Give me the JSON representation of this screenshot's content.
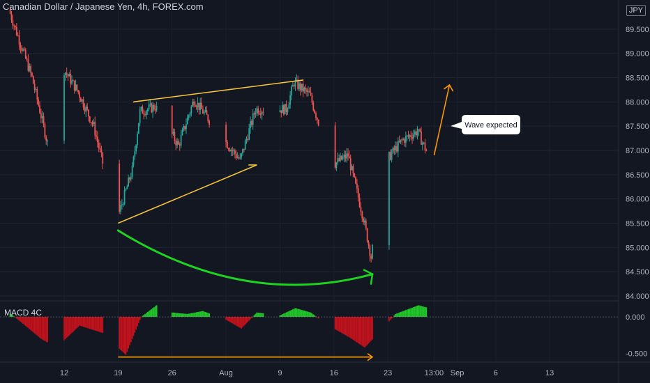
{
  "header": {
    "title": "Canadian Dollar / Japanese Yen, 4h, FOREX.com",
    "currency_badge": "JPY"
  },
  "colors": {
    "background": "#131722",
    "up_candle": "#26a69a",
    "down_candle": "#ef5350",
    "macd_up": "#23d82a",
    "macd_down": "#d3121c",
    "channel_line": "#f5c23d",
    "wave_arrow": "#ff9800",
    "curve_arrow": "#1fd322"
  },
  "chart_data": {
    "type": "candlestick",
    "title": "Canadian Dollar / Japanese Yen, 4h, FOREX.com",
    "price_axis": {
      "ticks": [
        "89.500",
        "89.000",
        "88.500",
        "88.000",
        "87.500",
        "87.000",
        "86.500",
        "86.000",
        "85.500",
        "85.000",
        "84.500",
        "84.000"
      ],
      "range": [
        83.9,
        90.1
      ]
    },
    "time_axis": {
      "ticks": [
        "12",
        "19",
        "26",
        "Aug",
        "9",
        "16",
        "23",
        "13:00",
        "Sep",
        "6",
        "13"
      ]
    },
    "key_points": [
      {
        "time": "Jul 05",
        "price": 89.9
      },
      {
        "time": "Jul 08",
        "price": 88.5
      },
      {
        "time": "Jul 10",
        "price": 87.15
      },
      {
        "time": "Jul 12",
        "price": 88.7
      },
      {
        "time": "Jul 14",
        "price": 88.2
      },
      {
        "time": "Jul 16",
        "price": 87.5
      },
      {
        "time": "Jul 19",
        "price": 85.55
      },
      {
        "time": "Jul 21",
        "price": 86.6
      },
      {
        "time": "Jul 22",
        "price": 87.8
      },
      {
        "time": "Jul 24",
        "price": 87.9
      },
      {
        "time": "Jul 27",
        "price": 87.1
      },
      {
        "time": "Jul 29",
        "price": 88.05
      },
      {
        "time": "Aug 02",
        "price": 87.2
      },
      {
        "time": "Aug 04",
        "price": 86.8
      },
      {
        "time": "Aug 06",
        "price": 87.85
      },
      {
        "time": "Aug 10",
        "price": 87.85
      },
      {
        "time": "Aug 11",
        "price": 88.4
      },
      {
        "time": "Aug 13",
        "price": 88.15
      },
      {
        "time": "Aug 16",
        "price": 86.7
      },
      {
        "time": "Aug 18",
        "price": 86.9
      },
      {
        "time": "Aug 20",
        "price": 85.6
      },
      {
        "time": "Aug 21",
        "price": 84.8
      },
      {
        "time": "Aug 23",
        "price": 86.8
      },
      {
        "time": "Aug 25",
        "price": 87.2
      },
      {
        "time": "Aug 27",
        "price": 87.4
      },
      {
        "time": "Aug 29",
        "price": 86.7
      }
    ],
    "macd": {
      "title": "MACD 4C",
      "ticks": [
        "0.000",
        "-0.500"
      ],
      "range": [
        -0.62,
        0.22
      ],
      "key_points": [
        {
          "time": "Jul 05",
          "value": 0.05
        },
        {
          "time": "Jul 09",
          "value": -0.3
        },
        {
          "time": "Jul 11",
          "value": -0.42
        },
        {
          "time": "Jul 14",
          "value": -0.12
        },
        {
          "time": "Jul 17",
          "value": -0.22
        },
        {
          "time": "Jul 20",
          "value": -0.52
        },
        {
          "time": "Jul 22",
          "value": 0.0
        },
        {
          "time": "Jul 24",
          "value": 0.16
        },
        {
          "time": "Jul 26",
          "value": 0.06
        },
        {
          "time": "Jul 28",
          "value": 0.04
        },
        {
          "time": "Jul 30",
          "value": 0.08
        },
        {
          "time": "Aug 02",
          "value": -0.04
        },
        {
          "time": "Aug 04",
          "value": -0.16
        },
        {
          "time": "Aug 06",
          "value": 0.06
        },
        {
          "time": "Aug 09",
          "value": 0.02
        },
        {
          "time": "Aug 11",
          "value": 0.12
        },
        {
          "time": "Aug 13",
          "value": 0.06
        },
        {
          "time": "Aug 15",
          "value": -0.1
        },
        {
          "time": "Aug 18",
          "value": -0.28
        },
        {
          "time": "Aug 20",
          "value": -0.42
        },
        {
          "time": "Aug 22",
          "value": -0.2
        },
        {
          "time": "Aug 24",
          "value": 0.04
        },
        {
          "time": "Aug 27",
          "value": 0.16
        },
        {
          "time": "Aug 29",
          "value": 0.1
        }
      ]
    },
    "annotations": [
      {
        "type": "callout",
        "text": "Wave expected"
      },
      {
        "type": "channel",
        "upper": [
          {
            "time": "Jul 21",
            "price": 88.0
          },
          {
            "time": "Aug 12",
            "price": 88.45
          }
        ],
        "lower": [
          {
            "time": "Jul 19",
            "price": 85.5
          },
          {
            "time": "Aug 06",
            "price": 86.7
          }
        ]
      },
      {
        "type": "curve_arrow",
        "from": {
          "time": "Jul 19",
          "price": 85.35
        },
        "to": {
          "time": "Aug 21",
          "price": 84.45
        }
      },
      {
        "type": "wave_arrow",
        "from": {
          "time": "Aug 29",
          "price": 86.9
        },
        "to": {
          "time": "Aug 31",
          "price": 88.35
        }
      },
      {
        "type": "divergence_line",
        "from": {
          "time": "Jul 19",
          "value": -0.55
        },
        "to": {
          "time": "Aug 21",
          "value": -0.55
        }
      }
    ]
  }
}
